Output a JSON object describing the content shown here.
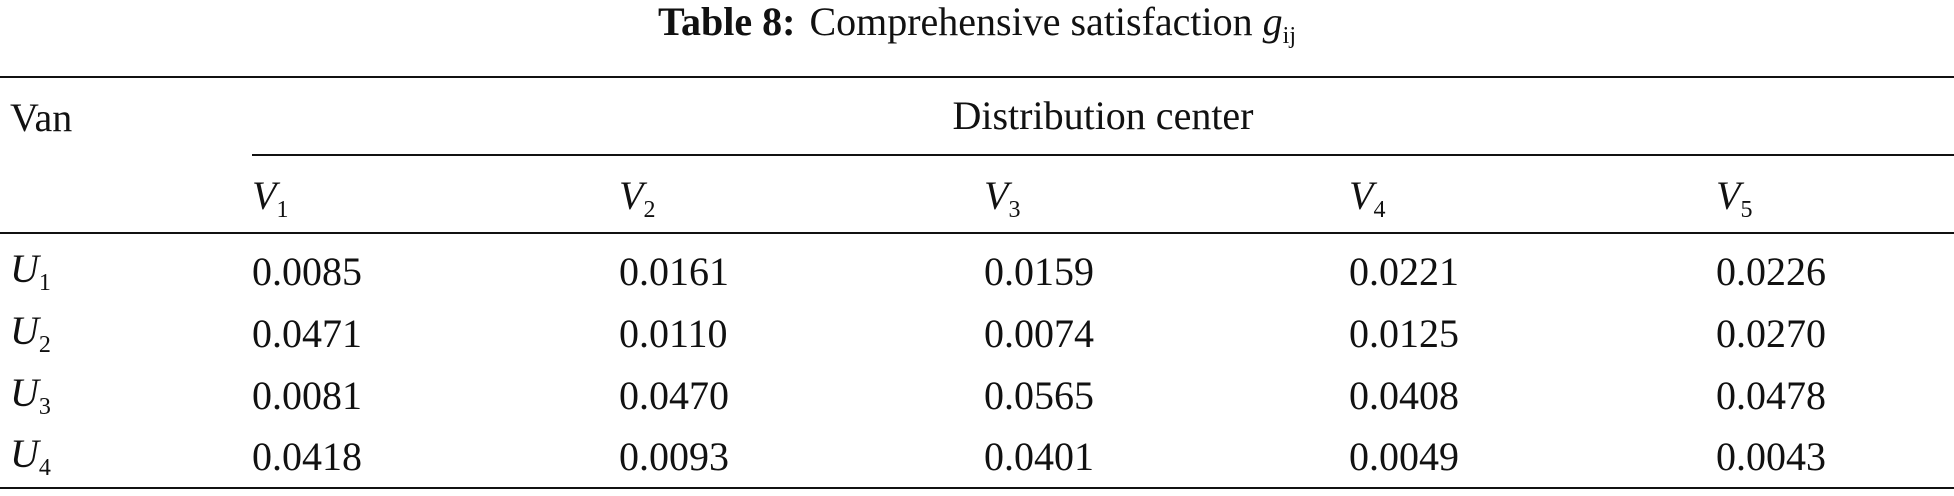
{
  "title": {
    "label": "Table 8:",
    "text": "Comprehensive satisfaction",
    "symbol": "g",
    "sub": "ij"
  },
  "table": {
    "row_header": "Van",
    "group_header": "Distribution center",
    "columns": [
      {
        "symbol": "V",
        "sub": "1"
      },
      {
        "symbol": "V",
        "sub": "2"
      },
      {
        "symbol": "V",
        "sub": "3"
      },
      {
        "symbol": "V",
        "sub": "4"
      },
      {
        "symbol": "V",
        "sub": "5"
      }
    ],
    "rows": [
      {
        "symbol": "U",
        "sub": "1",
        "values": [
          "0.0085",
          "0.0161",
          "0.0159",
          "0.0221",
          "0.0226"
        ]
      },
      {
        "symbol": "U",
        "sub": "2",
        "values": [
          "0.0471",
          "0.0110",
          "0.0074",
          "0.0125",
          "0.0270"
        ]
      },
      {
        "symbol": "U",
        "sub": "3",
        "values": [
          "0.0081",
          "0.0470",
          "0.0565",
          "0.0408",
          "0.0478"
        ]
      },
      {
        "symbol": "U",
        "sub": "4",
        "values": [
          "0.0418",
          "0.0093",
          "0.0401",
          "0.0049",
          "0.0043"
        ]
      }
    ]
  }
}
